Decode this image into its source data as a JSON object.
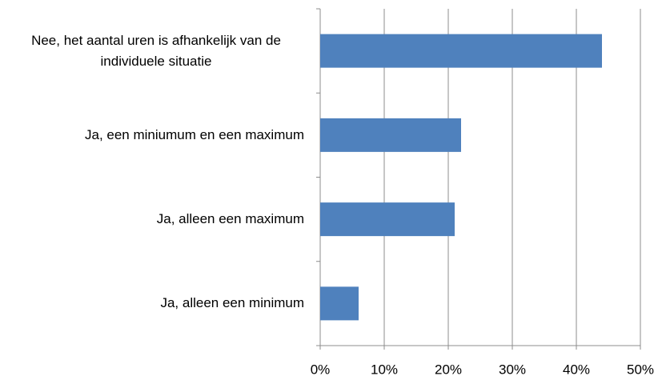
{
  "chart_data": {
    "type": "bar",
    "orientation": "horizontal",
    "categories": [
      "Nee, het aantal uren is afhankelijk van de individuele situatie",
      "Ja, een miniumum en een maximum",
      "Ja, alleen een maximum",
      "Ja, alleen een minimum"
    ],
    "values": [
      44,
      22,
      21,
      6
    ],
    "color": "#4f81bd",
    "xlim": [
      0,
      50
    ],
    "xticks": [
      {
        "value": 0,
        "label": "0%"
      },
      {
        "value": 10,
        "label": "10%"
      },
      {
        "value": 20,
        "label": "20%"
      },
      {
        "value": 30,
        "label": "30%"
      },
      {
        "value": 40,
        "label": "40%"
      },
      {
        "value": 50,
        "label": "50%"
      }
    ],
    "grid": true
  }
}
